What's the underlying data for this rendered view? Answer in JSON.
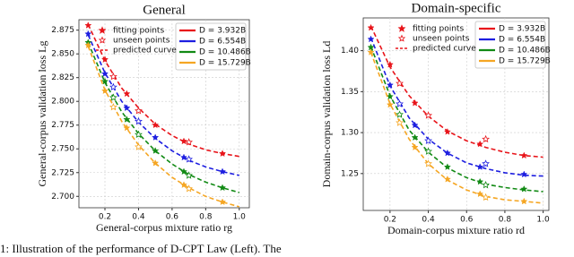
{
  "caption": "1: Illustration of the performance of D-CPT Law (Left). The",
  "chart_data": [
    {
      "type": "line",
      "title": "General",
      "xlabel": "General-corpus mixture ratio rg",
      "ylabel": "General-corpus validation loss Lg",
      "xlim": [
        0.045,
        1.06
      ],
      "ylim": [
        2.688,
        2.886
      ],
      "xticks": [
        0.2,
        0.4,
        0.6,
        0.8,
        {
          "value": 1,
          "label": "1.0"
        }
      ],
      "yticks": [
        {
          "value": 2.7,
          "label": "2.700"
        },
        2.725,
        {
          "value": 2.75,
          "label": "2.750"
        },
        2.775,
        {
          "value": 2.8,
          "label": "2.800"
        },
        2.825,
        {
          "value": 2.85,
          "label": "2.850"
        },
        2.875
      ],
      "grid": true,
      "legend_position": "upper right",
      "legend_labels": [
        "fitting points",
        "unseen points",
        "predicted curve"
      ],
      "x": [
        0.1,
        0.2,
        0.3,
        0.4,
        0.5,
        0.6,
        0.7,
        0.8,
        0.9,
        1
      ],
      "fit_x": [
        0.1,
        0.2,
        0.33,
        0.5,
        0.67,
        0.9
      ],
      "unseen_x": [
        0.25,
        0.4,
        0.7
      ],
      "series": [
        {
          "name": "D = 3.932B",
          "color": "#e8141a",
          "values": [
            2.881,
            2.843,
            2.814,
            2.793,
            2.776,
            2.764,
            2.755,
            2.749,
            2.745,
            2.742
          ],
          "fit_values": [
            2.88,
            2.844,
            2.808,
            2.775,
            2.758,
            2.745
          ],
          "unseen_values": [
            2.826,
            2.79,
            2.757
          ]
        },
        {
          "name": "D = 6.554B",
          "color": "#1d1ee0",
          "values": [
            2.87,
            2.83,
            2.8,
            2.778,
            2.761,
            2.748,
            2.738,
            2.731,
            2.726,
            2.722
          ],
          "fit_values": [
            2.871,
            2.829,
            2.793,
            2.762,
            2.741,
            2.726
          ],
          "unseen_values": [
            2.815,
            2.779,
            2.739
          ]
        },
        {
          "name": "D = 10.486B",
          "color": "#118a14",
          "values": [
            2.862,
            2.82,
            2.789,
            2.766,
            2.748,
            2.734,
            2.723,
            2.715,
            2.709,
            2.704
          ],
          "fit_values": [
            2.862,
            2.821,
            2.781,
            2.748,
            2.726,
            2.709
          ],
          "unseen_values": [
            2.804,
            2.765,
            2.722
          ]
        },
        {
          "name": "D = 15.729B",
          "color": "#f5a623",
          "values": [
            2.858,
            2.812,
            2.779,
            2.754,
            2.735,
            2.72,
            2.709,
            2.7,
            2.694,
            2.689
          ],
          "fit_values": [
            2.859,
            2.811,
            2.772,
            2.735,
            2.712,
            2.694
          ],
          "unseen_values": [
            2.794,
            2.752,
            2.708
          ]
        }
      ]
    },
    {
      "type": "line",
      "title": "Domain-specific",
      "xlabel": "Domain-corpus mixture ratio rd",
      "ylabel": "Domain-corpus validation loss Ld",
      "xlim": [
        0.06,
        1.03
      ],
      "ylim": [
        1.205,
        1.44
      ],
      "xticks": [
        0.2,
        0.4,
        0.6,
        0.8,
        {
          "value": 1,
          "label": "1.0"
        }
      ],
      "yticks": [
        1.25,
        {
          "value": 1.3,
          "label": "1.30"
        },
        1.35,
        {
          "value": 1.4,
          "label": "1.40"
        }
      ],
      "grid": true,
      "legend_position": "upper right",
      "legend_labels": [
        "fitting points",
        "unseen points",
        "predicted curve"
      ],
      "x": [
        0.1,
        0.2,
        0.3,
        0.4,
        0.5,
        0.6,
        0.7,
        0.8,
        0.9,
        1
      ],
      "fit_x": [
        0.1,
        0.2,
        0.33,
        0.5,
        0.67,
        0.9
      ],
      "unseen_x": [
        0.25,
        0.4,
        0.7
      ],
      "series": [
        {
          "name": "D = 3.932B",
          "color": "#e8141a",
          "values": [
            1.43,
            1.38,
            1.345,
            1.32,
            1.302,
            1.29,
            1.282,
            1.276,
            1.272,
            1.27
          ],
          "fit_values": [
            1.428,
            1.383,
            1.336,
            1.301,
            1.286,
            1.272
          ],
          "unseen_values": [
            1.36,
            1.321,
            1.292
          ]
        },
        {
          "name": "D = 6.554B",
          "color": "#1d1ee0",
          "values": [
            1.416,
            1.357,
            1.318,
            1.292,
            1.275,
            1.263,
            1.256,
            1.251,
            1.248,
            1.247
          ],
          "fit_values": [
            1.414,
            1.358,
            1.309,
            1.275,
            1.258,
            1.249
          ],
          "unseen_values": [
            1.335,
            1.29,
            1.262
          ]
        },
        {
          "name": "D = 10.486B",
          "color": "#118a14",
          "values": [
            1.405,
            1.345,
            1.303,
            1.276,
            1.257,
            1.245,
            1.237,
            1.233,
            1.23,
            1.228
          ],
          "fit_values": [
            1.404,
            1.344,
            1.294,
            1.258,
            1.24,
            1.231
          ],
          "unseen_values": [
            1.322,
            1.277,
            1.236
          ]
        },
        {
          "name": "D = 15.729B",
          "color": "#f5a623",
          "values": [
            1.398,
            1.335,
            1.292,
            1.262,
            1.242,
            1.23,
            1.222,
            1.218,
            1.216,
            1.214
          ],
          "fit_values": [
            1.398,
            1.334,
            1.282,
            1.243,
            1.225,
            1.216
          ],
          "unseen_values": [
            1.312,
            1.262,
            1.221
          ]
        }
      ]
    }
  ]
}
